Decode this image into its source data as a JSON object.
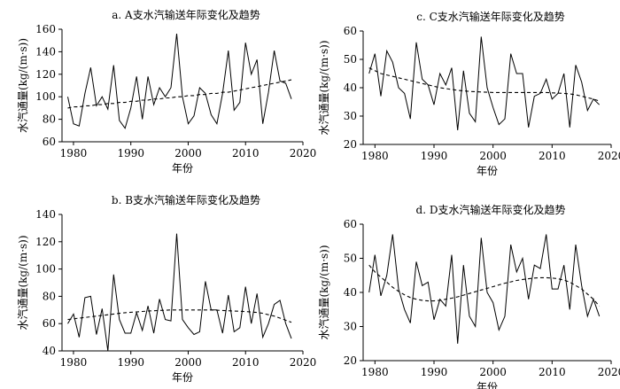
{
  "figure": {
    "panels_order": [
      "a",
      "c",
      "b",
      "d"
    ]
  },
  "chart_data": [
    {
      "id": "a",
      "type": "line",
      "title": "a. A支水汽输送年际变化及趋势",
      "xlabel": "年份",
      "ylabel": "水汽通量(kg/(m·s))",
      "xlim": [
        1978,
        2020
      ],
      "ylim": [
        60,
        160
      ],
      "xticks": [
        1980,
        1990,
        2000,
        2010,
        2020
      ],
      "yticks": [
        60,
        80,
        100,
        120,
        140,
        160
      ],
      "axes_box": "left-bottom",
      "grid": false,
      "x": [
        1979,
        1980,
        1981,
        1982,
        1983,
        1984,
        1985,
        1986,
        1987,
        1988,
        1989,
        1990,
        1991,
        1992,
        1993,
        1994,
        1995,
        1996,
        1997,
        1998,
        1999,
        2000,
        2001,
        2002,
        2003,
        2004,
        2005,
        2006,
        2007,
        2008,
        2009,
        2010,
        2011,
        2012,
        2013,
        2014,
        2015,
        2016,
        2017,
        2018
      ],
      "series": [
        {
          "style": "solid",
          "values": [
            100,
            76,
            74,
            103,
            126,
            92,
            100,
            89,
            128,
            79,
            72,
            90,
            118,
            80,
            118,
            93,
            108,
            100,
            108,
            156,
            100,
            76,
            83,
            108,
            103,
            84,
            76,
            103,
            141,
            88,
            95,
            148,
            120,
            133,
            76,
            104,
            141,
            114,
            112,
            98
          ]
        },
        {
          "style": "dashed",
          "values": [
            90,
            91,
            91,
            92,
            92,
            93,
            93,
            94,
            94,
            95,
            95,
            96,
            96,
            97,
            97,
            98,
            98,
            99,
            99,
            100,
            100,
            101,
            101,
            102,
            102,
            103,
            103,
            104,
            104,
            105,
            106,
            107,
            108,
            109,
            110,
            111,
            112,
            113,
            114,
            115
          ]
        }
      ]
    },
    {
      "id": "c",
      "type": "line",
      "title": "c. C支水汽输送年际变化及趋势",
      "xlabel": "年份",
      "ylabel": "水汽通量(kg/(m·s))",
      "xlim": [
        1978,
        2020
      ],
      "ylim": [
        20,
        60
      ],
      "xticks": [
        1980,
        1990,
        2000,
        2010,
        2020
      ],
      "yticks": [
        20,
        30,
        40,
        50,
        60
      ],
      "axes_box": "left-bottom",
      "grid": false,
      "x": [
        1979,
        1980,
        1981,
        1982,
        1983,
        1984,
        1985,
        1986,
        1987,
        1988,
        1989,
        1990,
        1991,
        1992,
        1993,
        1994,
        1995,
        1996,
        1997,
        1998,
        1999,
        2000,
        2001,
        2002,
        2003,
        2004,
        2005,
        2006,
        2007,
        2008,
        2009,
        2010,
        2011,
        2012,
        2013,
        2014,
        2015,
        2016,
        2017,
        2018
      ],
      "series": [
        {
          "style": "solid",
          "values": [
            45,
            52,
            37,
            53,
            49,
            40,
            38,
            29,
            56,
            43,
            41,
            34,
            45,
            41,
            47,
            25,
            46,
            31,
            28,
            58,
            40,
            33,
            27,
            29,
            52,
            45,
            45,
            26,
            37,
            38,
            43,
            36,
            38,
            45,
            26,
            48,
            42,
            32,
            36,
            34
          ]
        },
        {
          "style": "dashed",
          "values": [
            47,
            46,
            45,
            44.5,
            44,
            43.5,
            43,
            42.5,
            42,
            41.5,
            41,
            40.5,
            40,
            39.7,
            39.4,
            39.1,
            38.9,
            38.7,
            38.6,
            38.5,
            38.4,
            38.3,
            38.3,
            38.3,
            38.3,
            38.3,
            38.3,
            38.3,
            38.3,
            38.3,
            38.3,
            38.2,
            38.1,
            38,
            37.8,
            37.5,
            37,
            36.5,
            36,
            35.3
          ]
        }
      ]
    },
    {
      "id": "b",
      "type": "line",
      "title": "b. B支水汽输送年际变化及趋势",
      "xlabel": "年份",
      "ylabel": "水汽通量(kg/(m·s))",
      "xlim": [
        1978,
        2020
      ],
      "ylim": [
        40,
        140
      ],
      "xticks": [
        1980,
        1990,
        2000,
        2010,
        2020
      ],
      "yticks": [
        40,
        60,
        80,
        100,
        120,
        140
      ],
      "axes_box": "left-bottom",
      "grid": false,
      "x": [
        1979,
        1980,
        1981,
        1982,
        1983,
        1984,
        1985,
        1986,
        1987,
        1988,
        1989,
        1990,
        1991,
        1992,
        1993,
        1994,
        1995,
        1996,
        1997,
        1998,
        1999,
        2000,
        2001,
        2002,
        2003,
        2004,
        2005,
        2006,
        2007,
        2008,
        2009,
        2010,
        2011,
        2012,
        2013,
        2014,
        2015,
        2016,
        2017,
        2018
      ],
      "series": [
        {
          "style": "solid",
          "values": [
            60,
            67,
            50,
            79,
            80,
            52,
            71,
            40,
            96,
            63,
            53,
            53,
            68,
            55,
            73,
            53,
            78,
            63,
            62,
            126,
            63,
            57,
            52,
            54,
            91,
            70,
            70,
            53,
            81,
            54,
            57,
            87,
            60,
            82,
            50,
            60,
            74,
            77,
            60,
            49
          ]
        },
        {
          "style": "dashed",
          "values": [
            63,
            63.5,
            64,
            64.5,
            65,
            65.5,
            66,
            66.5,
            67,
            67.5,
            68,
            68.3,
            68.6,
            68.9,
            69.2,
            69.4,
            69.6,
            69.8,
            70,
            70,
            70,
            70,
            70,
            70,
            70,
            70,
            69.8,
            69.6,
            69.4,
            69.2,
            69,
            68.8,
            68.5,
            68.2,
            67.5,
            66.5,
            65.5,
            64,
            62.5,
            61
          ]
        }
      ]
    },
    {
      "id": "d",
      "type": "line",
      "title": "d. D支水汽输送年际变化及趋势",
      "xlabel": "年份",
      "ylabel": "水汽通量(kg/(m·s))",
      "xlim": [
        1978,
        2020
      ],
      "ylim": [
        20,
        60
      ],
      "xticks": [
        1980,
        1990,
        2000,
        2010,
        2020
      ],
      "yticks": [
        20,
        30,
        40,
        50,
        60
      ],
      "axes_box": "left-bottom",
      "grid": false,
      "x": [
        1979,
        1980,
        1981,
        1982,
        1983,
        1984,
        1985,
        1986,
        1987,
        1988,
        1989,
        1990,
        1991,
        1992,
        1993,
        1994,
        1995,
        1996,
        1997,
        1998,
        1999,
        2000,
        2001,
        2002,
        2003,
        2004,
        2005,
        2006,
        2007,
        2008,
        2009,
        2010,
        2011,
        2012,
        2013,
        2014,
        2015,
        2016,
        2017,
        2018
      ],
      "series": [
        {
          "style": "solid",
          "values": [
            40,
            51,
            39,
            45,
            57,
            41,
            35,
            31,
            49,
            42,
            43,
            32,
            38,
            36,
            51,
            25,
            48,
            33,
            30,
            56,
            40,
            37,
            29,
            33,
            54,
            46,
            50,
            38,
            48,
            47,
            57,
            41,
            41,
            48,
            35,
            54,
            42,
            33,
            38,
            33
          ]
        },
        {
          "style": "dashed",
          "values": [
            48,
            46,
            44.5,
            43,
            41.5,
            40.3,
            39.3,
            38.5,
            38,
            37.7,
            37.5,
            37.5,
            37.7,
            38,
            38.3,
            38.7,
            39.2,
            39.7,
            40.2,
            40.7,
            41.2,
            41.7,
            42.2,
            42.7,
            43.1,
            43.5,
            43.8,
            44,
            44.2,
            44.3,
            44.3,
            44.2,
            44,
            43.6,
            43,
            42,
            41,
            39.5,
            38,
            36
          ]
        }
      ]
    }
  ]
}
